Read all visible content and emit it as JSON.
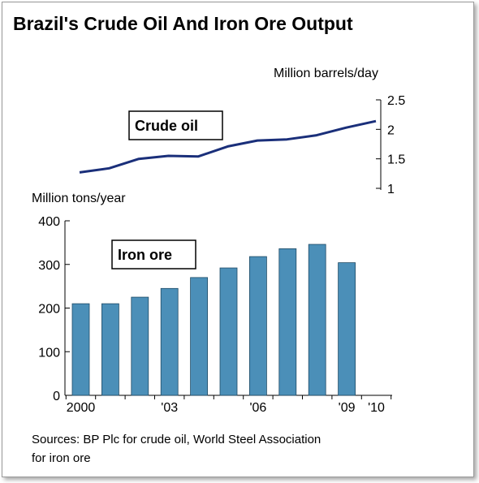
{
  "title": "Brazil's Crude Oil And Iron Ore Output",
  "sources": [
    "Sources: BP Plc for crude oil, World Steel Association",
    "for iron ore"
  ],
  "chart_data": [
    {
      "type": "line",
      "series": [
        {
          "name": "Crude oil",
          "x": [
            2000,
            2001,
            2002,
            2003,
            2004,
            2005,
            2006,
            2007,
            2008,
            2009,
            2010
          ],
          "values": [
            1.27,
            1.34,
            1.5,
            1.55,
            1.54,
            1.71,
            1.81,
            1.83,
            1.9,
            2.03,
            2.14
          ]
        }
      ],
      "ylabel": "Million barrels/day",
      "ylim": [
        1,
        2.5
      ],
      "yticks": [
        "2.5",
        "2",
        "1.5",
        "1"
      ],
      "color": "#1a2f7a"
    },
    {
      "type": "bar",
      "series": [
        {
          "name": "Iron ore",
          "values": [
            210,
            210,
            225,
            245,
            270,
            292,
            318,
            336,
            346,
            304
          ]
        }
      ],
      "categories": [
        "2000",
        "2001",
        "2002",
        "2003",
        "2004",
        "2005",
        "2006",
        "2007",
        "2008",
        "2009"
      ],
      "ylabel": "Million tons/year",
      "ylim": [
        0,
        400
      ],
      "yticks": [
        "400",
        "300",
        "200",
        "100",
        "0"
      ],
      "xticks": [
        "2000",
        "'03",
        "'06",
        "'09",
        "'10"
      ],
      "color": "#4b8fb8"
    }
  ]
}
